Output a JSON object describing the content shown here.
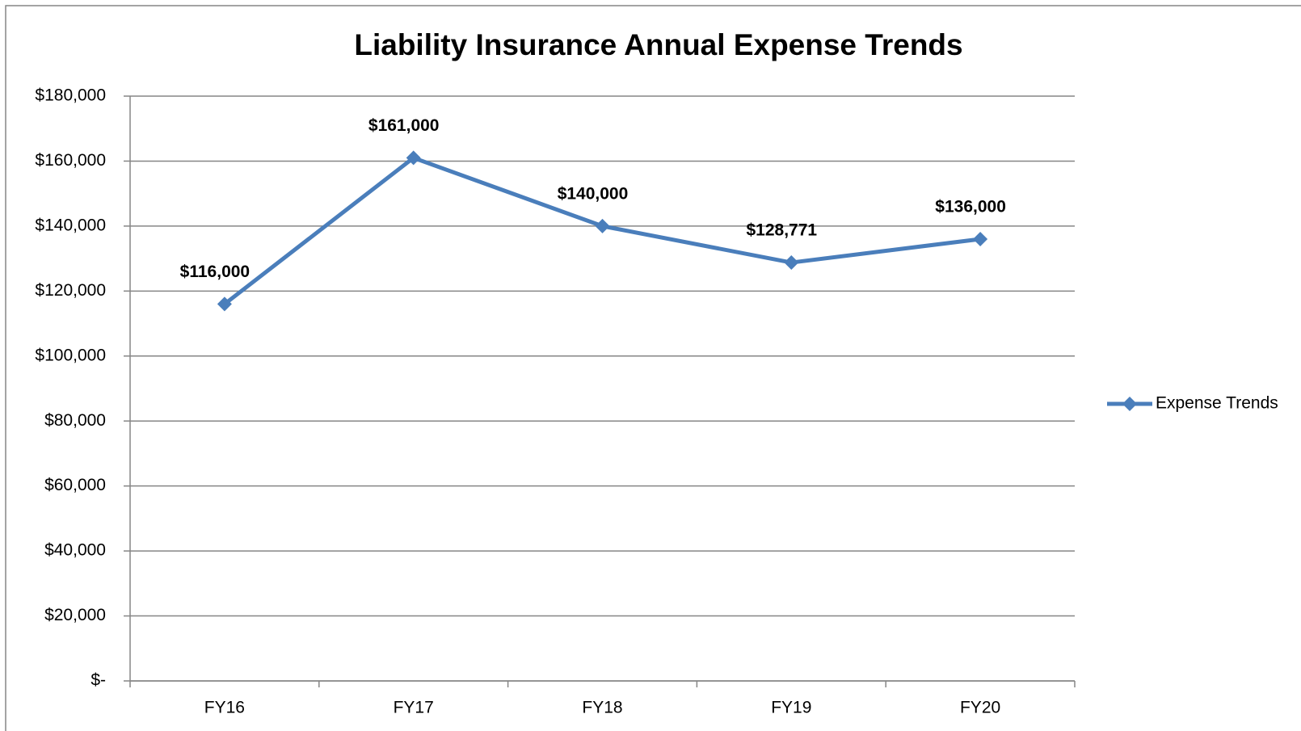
{
  "chart_data": {
    "type": "line",
    "title": "Liability Insurance Annual Expense Trends",
    "categories": [
      "FY16",
      "FY17",
      "FY18",
      "FY19",
      "FY20"
    ],
    "series": [
      {
        "name": "Expense Trends",
        "color": "#4a7ebb",
        "values": [
          116000,
          161000,
          140000,
          128771,
          136000
        ],
        "value_labels": [
          "$116,000",
          "$161,000",
          "$140,000",
          "$128,771",
          "$136,000"
        ]
      }
    ],
    "ylim": [
      0,
      180000
    ],
    "yticks": [
      {
        "value": 0,
        "label": "$-"
      },
      {
        "value": 20000,
        "label": "$20,000"
      },
      {
        "value": 40000,
        "label": "$40,000"
      },
      {
        "value": 60000,
        "label": "$60,000"
      },
      {
        "value": 80000,
        "label": "$80,000"
      },
      {
        "value": 100000,
        "label": "$100,000"
      },
      {
        "value": 120000,
        "label": "$120,000"
      },
      {
        "value": 140000,
        "label": "$140,000"
      },
      {
        "value": 160000,
        "label": "$160,000"
      },
      {
        "value": 180000,
        "label": "$180,000"
      }
    ],
    "grid": true,
    "legend": "right"
  }
}
